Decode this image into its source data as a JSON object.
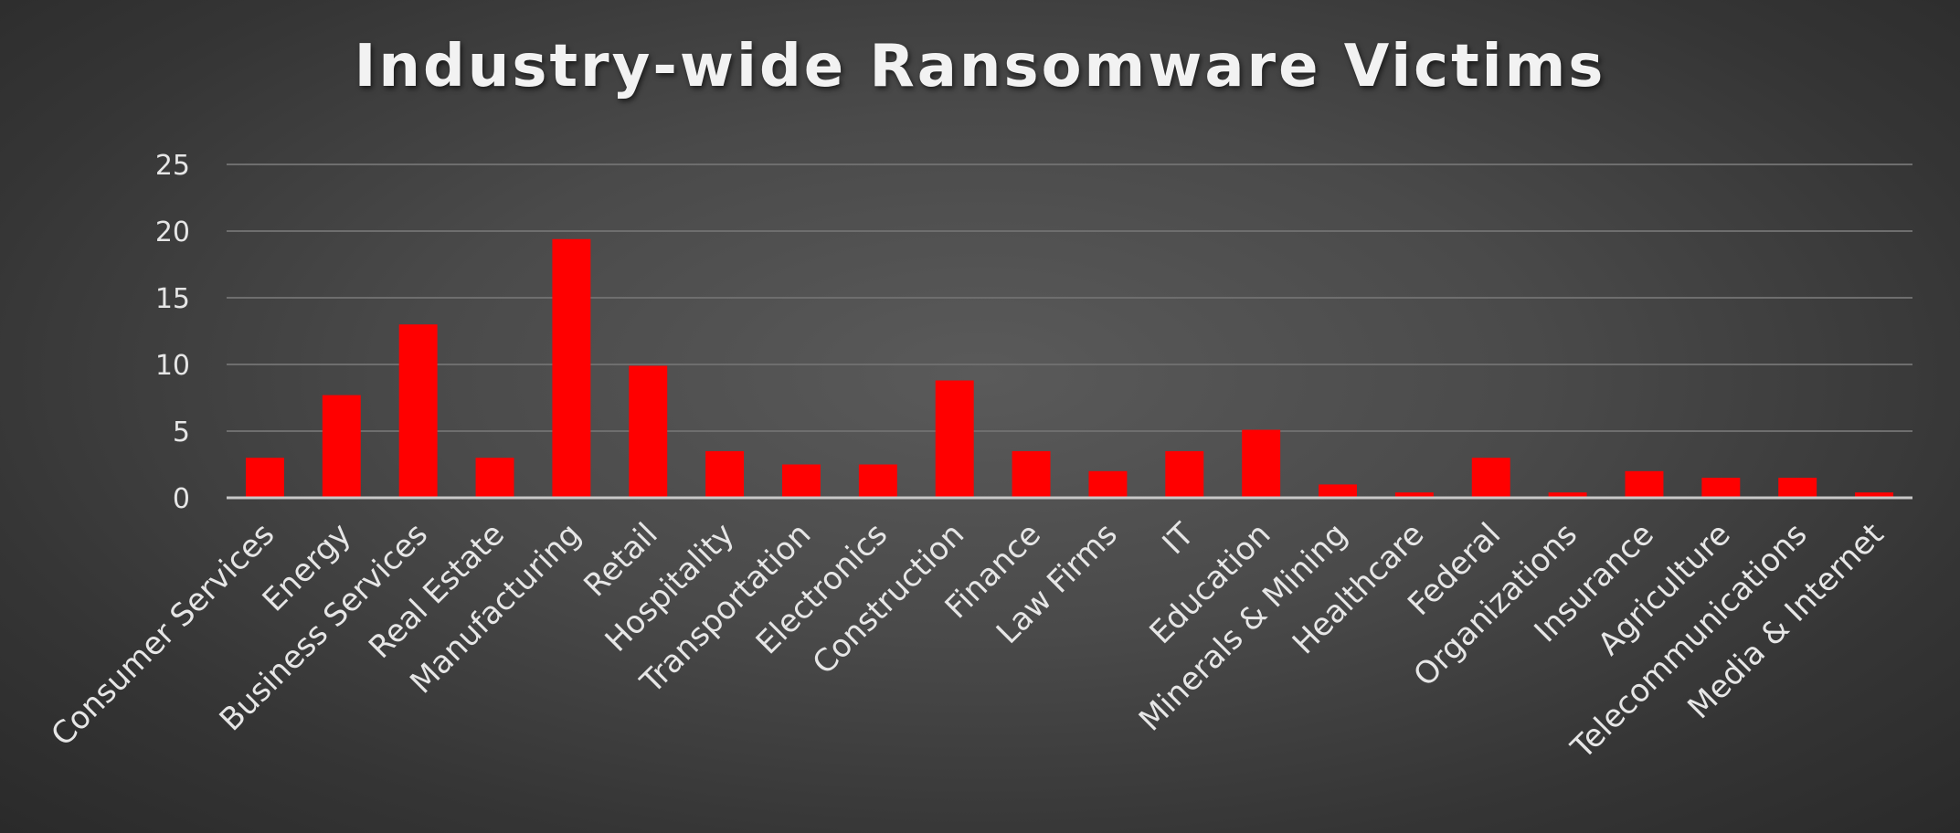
{
  "chart_data": {
    "type": "bar",
    "title": "Industry-wide Ransomware Victims",
    "xlabel": "",
    "ylabel": "",
    "ylim": [
      0,
      25
    ],
    "yticks": [
      0,
      5,
      10,
      15,
      20,
      25
    ],
    "grid": true,
    "legend": "none",
    "bar_color": "#ff0000",
    "categories": [
      "Consumer Services",
      "Energy",
      "Business Services",
      "Real Estate",
      "Manufacturing",
      "Retail",
      "Hospitality",
      "Transportation",
      "Electronics",
      "Construction",
      "Finance",
      "Law Firms",
      "IT",
      "Education",
      "Minerals & Mining",
      "Healthcare",
      "Federal",
      "Organizations",
      "Insurance",
      "Agriculture",
      "Telecommunications",
      "Media & Internet"
    ],
    "values": [
      3,
      7.7,
      13,
      3,
      19.4,
      9.9,
      3.5,
      2.5,
      2.5,
      8.8,
      3.5,
      2,
      3.5,
      5.1,
      1,
      0.4,
      3,
      0.4,
      2,
      1.5,
      1.5,
      0.4
    ]
  }
}
